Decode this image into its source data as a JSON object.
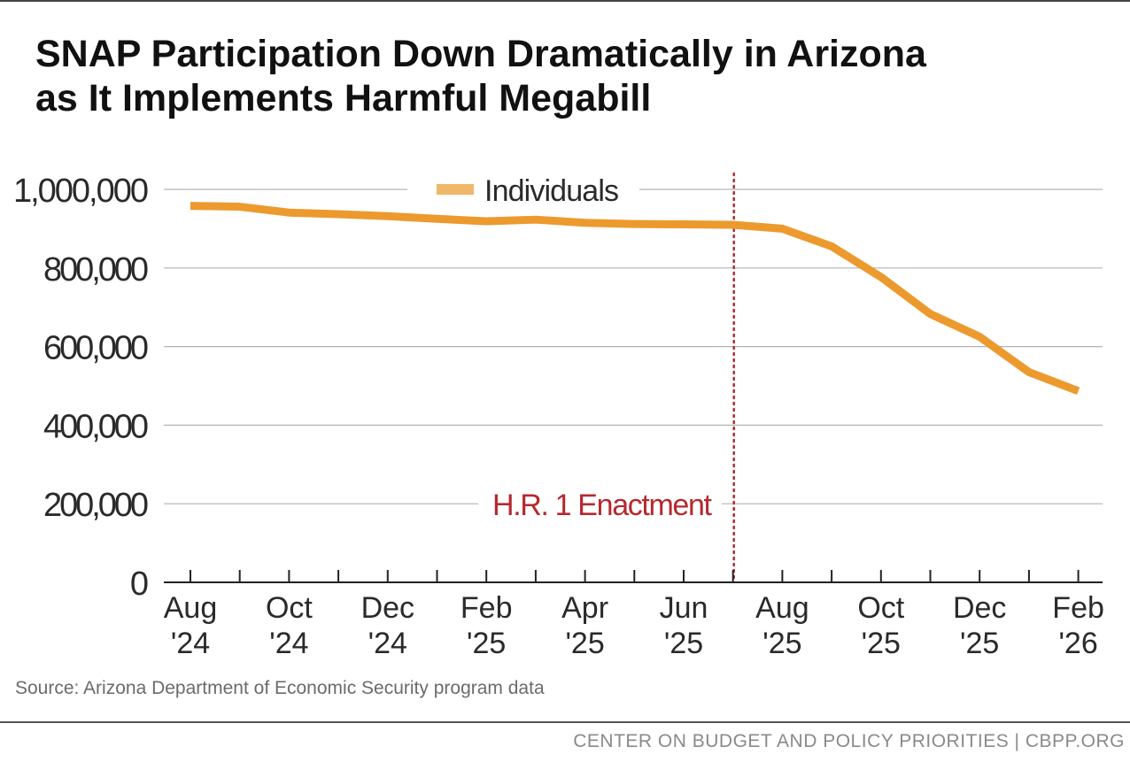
{
  "title_line1": "SNAP Participation Down Dramatically in Arizona",
  "title_line2": "as It Implements Harmful Megabill",
  "source": "Source: Arizona Department of Economic Security program data",
  "footer": "CENTER ON BUDGET AND POLICY PRIORITIES | CBPP.ORG",
  "colors": {
    "series": "#ec9a2e",
    "legend_swatch": "#f0b76a",
    "annotation": "#b5292f",
    "grid": "#b3b3b3",
    "axis": "#222222"
  },
  "chart_data": {
    "type": "line",
    "x": [
      "Aug '24",
      "Sep '24",
      "Oct '24",
      "Nov '24",
      "Dec '24",
      "Jan '25",
      "Feb '25",
      "Mar '25",
      "Apr '25",
      "May '25",
      "Jun '25",
      "Jul '25",
      "Aug '25",
      "Sep '25",
      "Oct '25",
      "Nov '25",
      "Dec '25",
      "Jan '26",
      "Feb '26"
    ],
    "series": [
      {
        "name": "Individuals",
        "values": [
          958000,
          956000,
          941000,
          937000,
          932000,
          925000,
          919000,
          923000,
          915000,
          912000,
          911000,
          910000,
          900000,
          855000,
          777000,
          683000,
          625000,
          535000,
          487000
        ]
      }
    ],
    "tick_labels": [
      {
        "month": "Aug",
        "year": "'24"
      },
      {
        "month": "Oct",
        "year": "'24"
      },
      {
        "month": "Dec",
        "year": "'24"
      },
      {
        "month": "Feb",
        "year": "'25"
      },
      {
        "month": "Apr",
        "year": "'25"
      },
      {
        "month": "Jun",
        "year": "'25"
      },
      {
        "month": "Aug",
        "year": "'25"
      },
      {
        "month": "Oct",
        "year": "'25"
      },
      {
        "month": "Dec",
        "year": "'25"
      },
      {
        "month": "Feb",
        "year": "'26"
      }
    ],
    "yticks": [
      0,
      200000,
      400000,
      600000,
      800000,
      1000000
    ],
    "ytick_labels": [
      "0",
      "200,000",
      "400,000",
      "600,000",
      "800,000",
      "1,000,000"
    ],
    "ylim": [
      0,
      1000000
    ],
    "grid": true,
    "legend": "top-center",
    "annotations": [
      {
        "text": "H.R. 1 Enactment",
        "x_between": [
          "Jun '25",
          "Aug '25"
        ],
        "style": "dotted vertical line"
      }
    ],
    "xlabel": "",
    "ylabel": ""
  }
}
